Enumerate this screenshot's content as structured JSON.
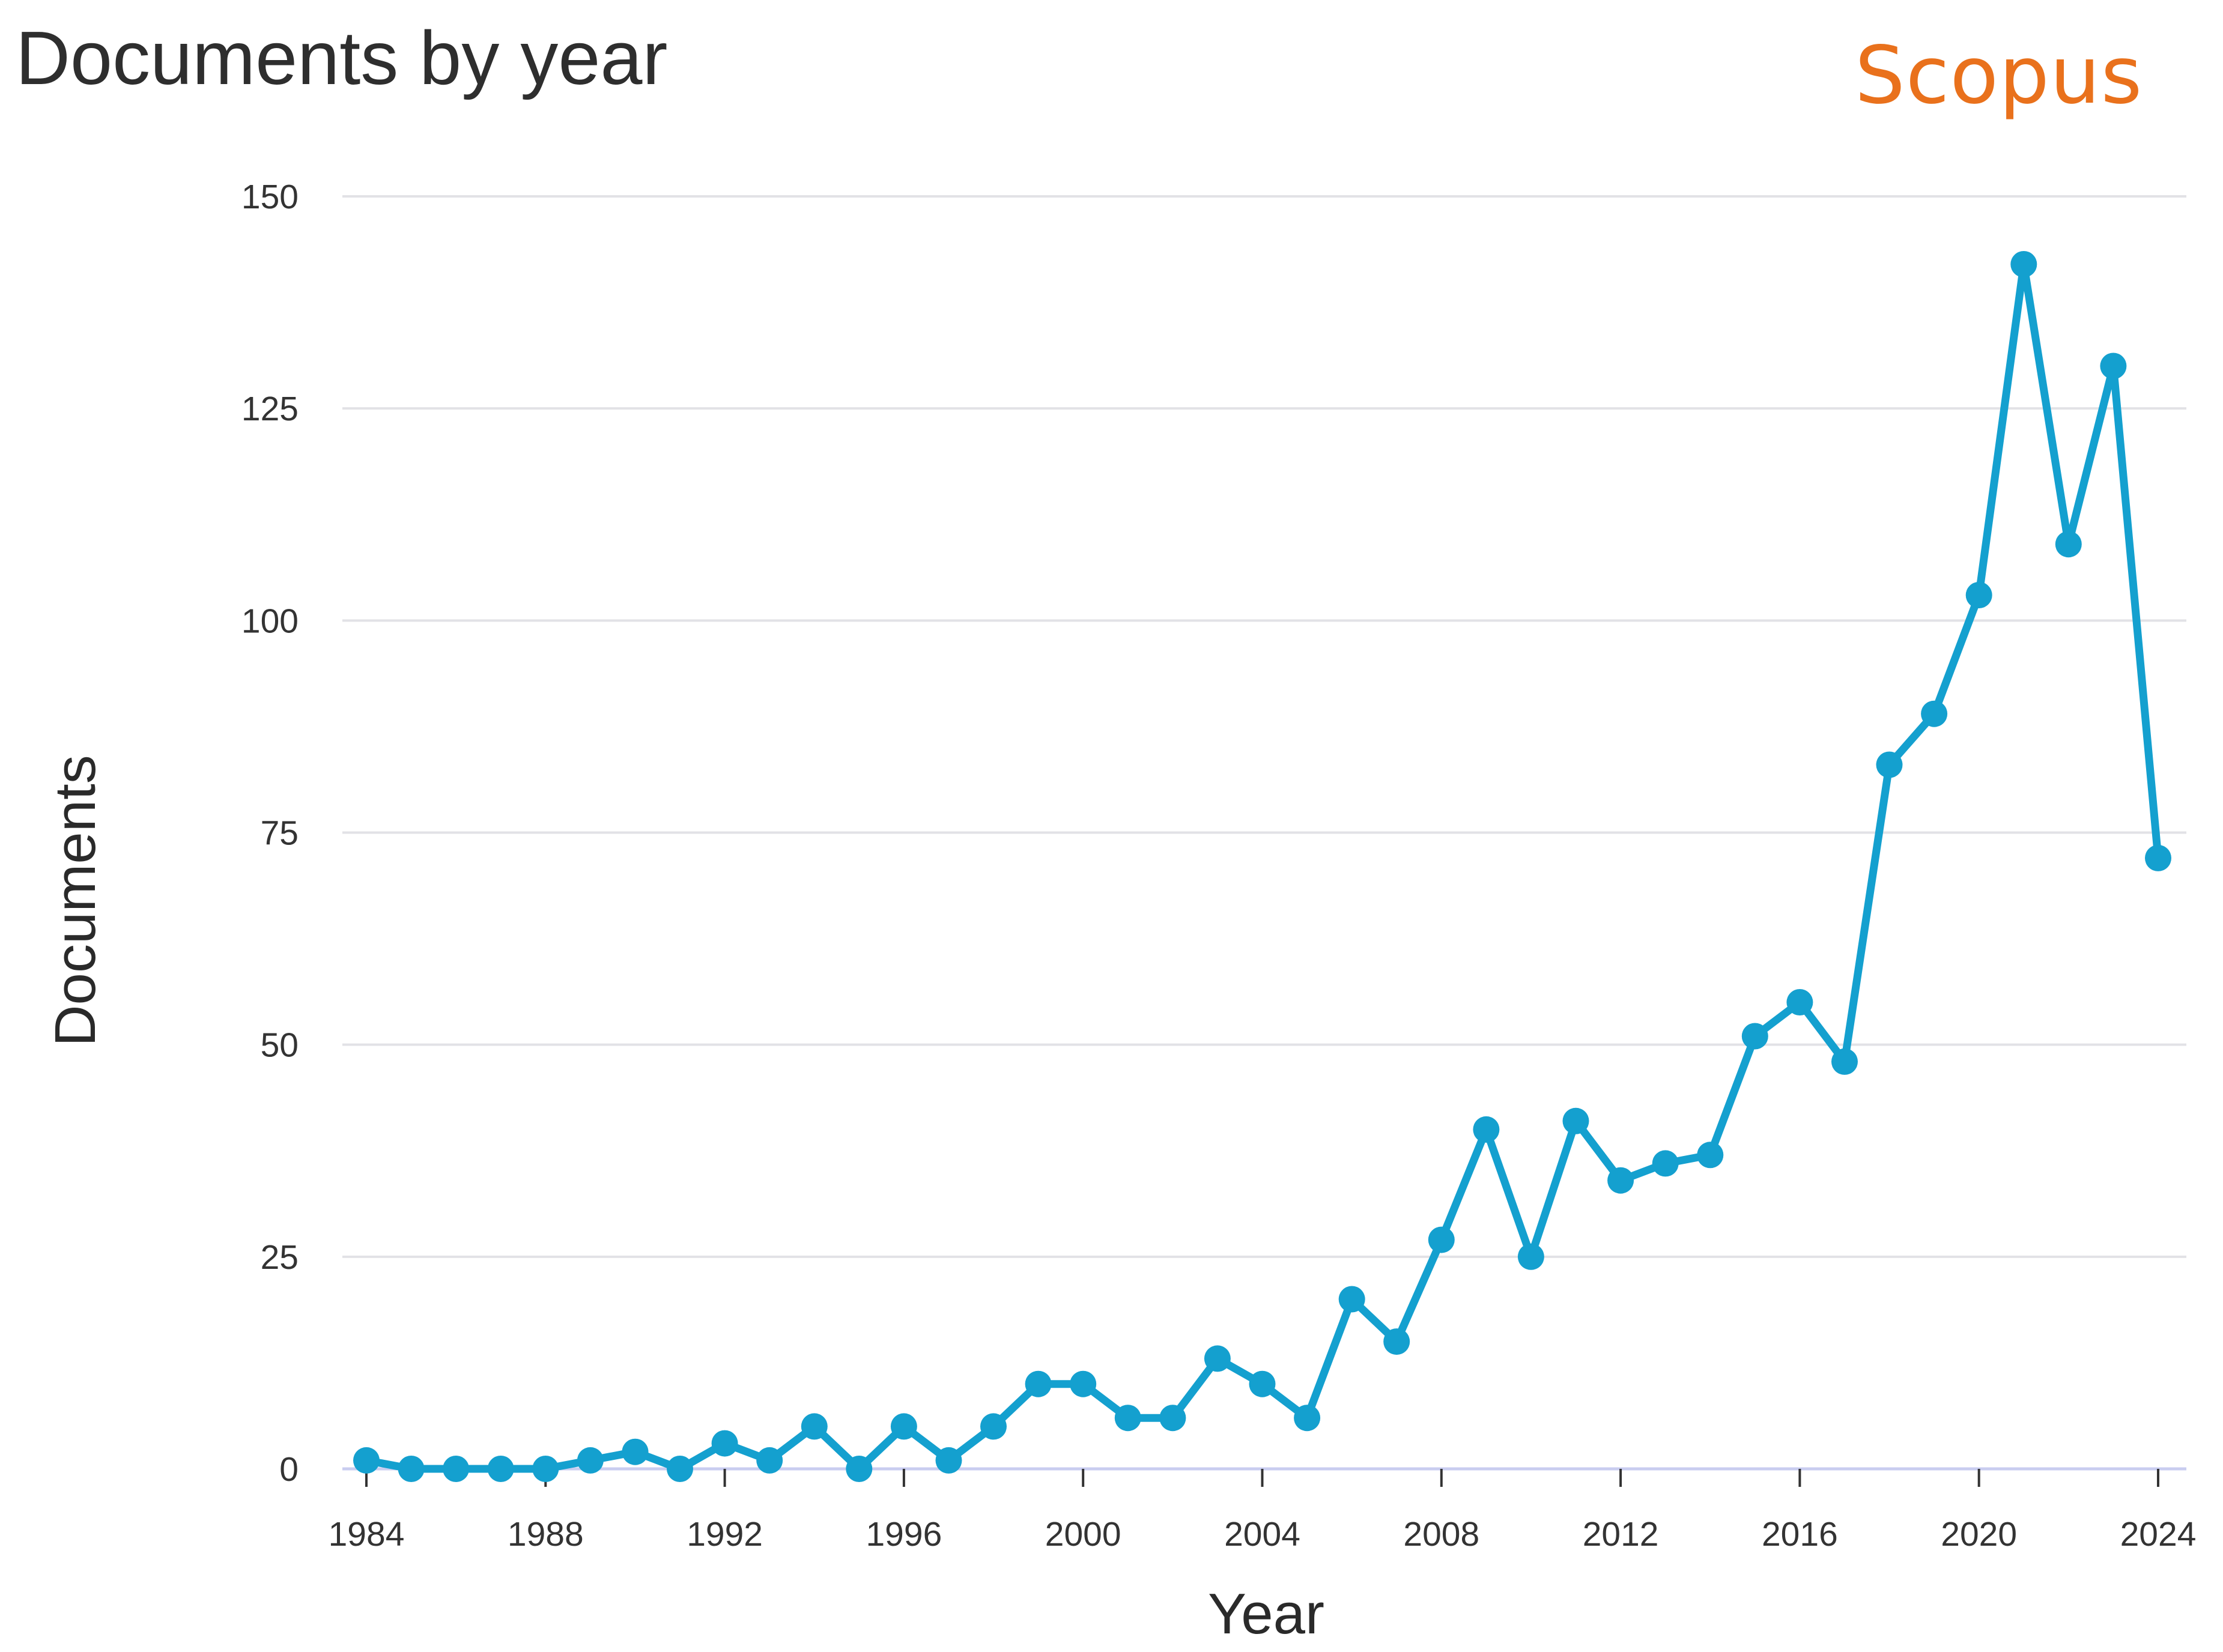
{
  "header": {
    "title": "Documents by year",
    "brand": "Scopus"
  },
  "colors": {
    "series": "#14a0cf",
    "grid": "#e2e2e6",
    "baseline": "#c9cdf0",
    "brand": "#e9711c"
  },
  "chart_data": {
    "type": "line",
    "title": "Documents by year",
    "xlabel": "Year",
    "ylabel": "Documents",
    "xlim": [
      1984,
      2024
    ],
    "ylim": [
      0,
      150
    ],
    "y_ticks": [
      "0",
      "25",
      "50",
      "75",
      "100",
      "125",
      "150"
    ],
    "x_ticks": [
      "1984",
      "1988",
      "1992",
      "1996",
      "2000",
      "2004",
      "2008",
      "2012",
      "2016",
      "2020",
      "2024"
    ],
    "grid": true,
    "legend": "none",
    "series": [
      {
        "name": "Documents",
        "x": [
          1984,
          1985,
          1986,
          1987,
          1988,
          1989,
          1990,
          1991,
          1992,
          1993,
          1994,
          1995,
          1996,
          1997,
          1998,
          1999,
          2000,
          2001,
          2002,
          2003,
          2004,
          2005,
          2006,
          2007,
          2008,
          2009,
          2010,
          2011,
          2012,
          2013,
          2014,
          2015,
          2016,
          2017,
          2018,
          2019,
          2020,
          2021,
          2022,
          2023,
          2024
        ],
        "values": [
          1,
          0,
          0,
          0,
          0,
          1,
          2,
          0,
          3,
          1,
          5,
          0,
          5,
          1,
          5,
          10,
          10,
          6,
          6,
          13,
          10,
          6,
          20,
          15,
          27,
          40,
          25,
          41,
          34,
          36,
          37,
          51,
          55,
          48,
          83,
          89,
          103,
          142,
          109,
          130,
          72
        ]
      }
    ]
  }
}
